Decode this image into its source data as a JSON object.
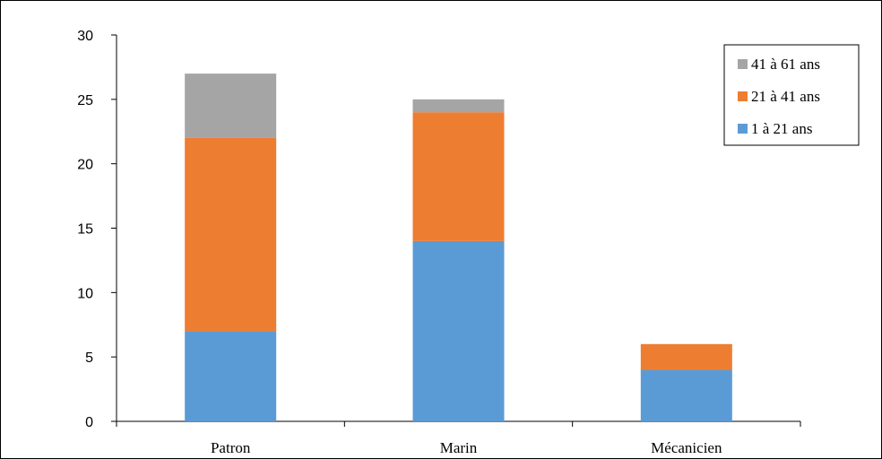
{
  "chart_data": {
    "type": "bar",
    "stacked": true,
    "categories": [
      "Patron",
      "Marin",
      "Mécanicien"
    ],
    "series": [
      {
        "name": "1 à 21 ans",
        "values": [
          7,
          14,
          4
        ],
        "color": "#5b9bd5"
      },
      {
        "name": "21 à 41 ans",
        "values": [
          15,
          10,
          2
        ],
        "color": "#ed7d31"
      },
      {
        "name": "41 à 61 ans",
        "values": [
          5,
          1,
          0
        ],
        "color": "#a5a5a5"
      }
    ],
    "ylim": [
      0,
      30
    ],
    "yticks": [
      0,
      5,
      10,
      15,
      20,
      25,
      30
    ],
    "grid": false,
    "legend_position": "top-right",
    "legend_order": [
      "41 à 61 ans",
      "21 à 41 ans",
      "1 à 21 ans"
    ],
    "title": "",
    "xlabel": "",
    "ylabel": ""
  }
}
